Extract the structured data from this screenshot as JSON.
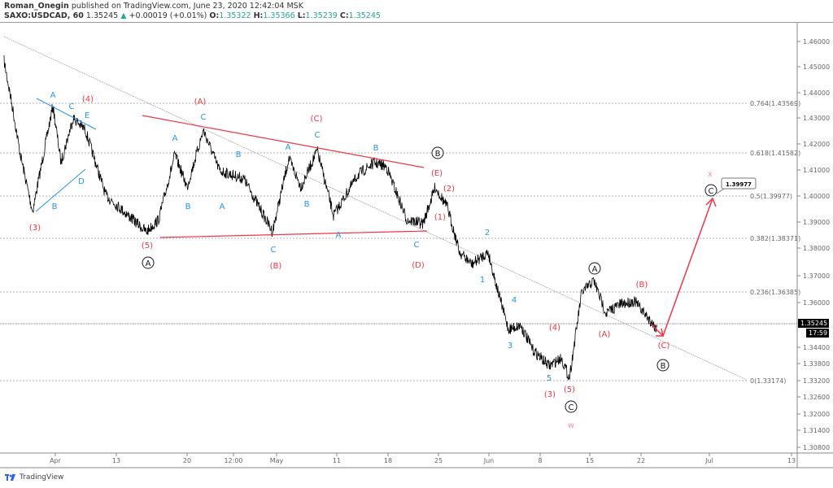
{
  "header": {
    "author": "Roman_Onegin",
    "published": "published on TradingView.com, June 23, 2020 12:42:04 MSK",
    "symbol": "SAXO:USDCAD, 60",
    "last": "1.35245",
    "change": "+0.00019 (+0.01%)",
    "o_label": "O:",
    "o": "1.35322",
    "h_label": "H:",
    "h": "1.35366",
    "l_label": "L:",
    "l": "1.35239",
    "c_label": "C:",
    "c": "1.35245"
  },
  "price_axis": [
    "1.46000",
    "1.45000",
    "1.44000",
    "1.43000",
    "1.42000",
    "1.41000",
    "1.40000",
    "1.39000",
    "1.38000",
    "1.37000",
    "1.36000",
    "1.34400",
    "1.33800",
    "1.33200",
    "1.32600",
    "1.32000",
    "1.31400",
    "1.30800"
  ],
  "current_price": "1.35245",
  "countdown": "17:59",
  "time_axis": [
    "Apr",
    "13",
    "20",
    "12:00",
    "May",
    "11",
    "18",
    "25",
    "Jun",
    "8",
    "15",
    "22",
    "Jul",
    "13"
  ],
  "fib_levels": [
    "0.764(1.43569)",
    "0.618(1.41582)",
    "0.5(1.39977)",
    "0.382(1.38371)",
    "0.236(1.36385)",
    "0(1.33174)"
  ],
  "target_callout": "1.39977",
  "wave_labels": [
    "A",
    "C",
    "E",
    "D",
    "B",
    "A",
    "C",
    "B",
    "B",
    "A",
    "A",
    "C",
    "B",
    "C",
    "A",
    "B",
    "C",
    "2",
    "1",
    "4",
    "3",
    "5",
    "(4)",
    "(3)",
    "(A)",
    "(5)",
    "(C)",
    "(B)",
    "(E)",
    "(2)",
    "(1)",
    "(D)",
    "(4)",
    "(5)",
    "(3)",
    "(A)",
    "(B)",
    "(C)",
    "A",
    "B",
    "A",
    "C",
    "B",
    "C",
    "x",
    "w"
  ],
  "colors": {
    "blue": "#2196f3",
    "red": "#f23645",
    "black": "#131722",
    "pink": "#f48fb1",
    "up": "#26a69a"
  },
  "footer": {
    "brand": "TradingView",
    "icon": "tradingview-logo-icon"
  }
}
